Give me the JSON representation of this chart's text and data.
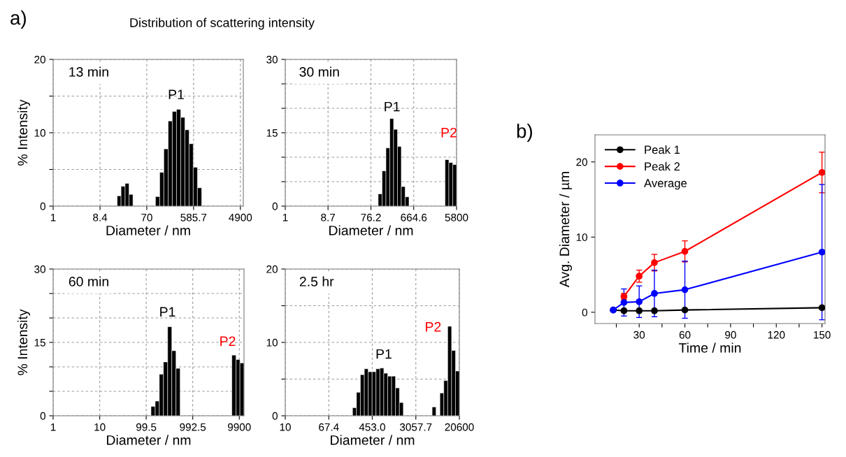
{
  "chart_data": [
    {
      "type": "histogram",
      "title": "13 min",
      "xlabel": "Diameter / nm",
      "ylabel": "% Intensity",
      "log": "x",
      "grid": true,
      "color": "#000000",
      "bins": [
        18.3,
        21.8,
        26.2,
        31.3,
        37.4,
        104,
        126,
        152,
        185,
        223,
        270,
        327,
        395,
        478,
        577,
        698,
        845
      ],
      "values": [
        1.4,
        2.7,
        3.1,
        1.6,
        0,
        1.3,
        4.6,
        7.8,
        11.6,
        12.9,
        13.2,
        12.1,
        10.4,
        8.5,
        5.3,
        2.5
      ],
      "xlim": [
        1,
        5600
      ],
      "xticks": [
        1,
        8.4,
        70,
        585.7,
        4900
      ],
      "ylim": [
        0,
        20
      ],
      "yticks": [
        0,
        {
          "value": 5,
          "label": null
        },
        10,
        {
          "value": 15,
          "label": null
        },
        20
      ],
      "annotations": [
        "a)",
        "Distribution of scattering intensity",
        "P1"
      ]
    },
    {
      "type": "histogram",
      "title": "30 min",
      "xlabel": "Diameter / nm",
      "log": "x",
      "grid": true,
      "color": "#000000",
      "bins": [
        110,
        134,
        163,
        198,
        240,
        292,
        354,
        430,
        523,
        3240,
        3930,
        4780,
        5800
      ],
      "values": [
        2.5,
        7.2,
        11.9,
        17.9,
        15.7,
        12.2,
        4.0,
        1.9,
        0,
        9.5,
        8.9,
        8.5
      ],
      "xlim": [
        1,
        5800
      ],
      "xticks": [
        1,
        8.7,
        76.2,
        664.6,
        5800
      ],
      "ylim": [
        0,
        30
      ],
      "yticks": [
        0,
        {
          "value": 5,
          "label": null
        },
        {
          "value": 10,
          "label": null
        },
        15,
        {
          "value": 20,
          "label": null
        },
        {
          "value": 25,
          "label": null
        },
        30
      ],
      "annotations": [
        "P1",
        "P2"
      ]
    },
    {
      "type": "histogram",
      "title": "60 min",
      "xlabel": "Diameter / nm",
      "ylabel": "% Intensity",
      "log": "x",
      "grid": true,
      "color": "#000000",
      "bins": [
        126,
        155,
        190,
        233,
        287,
        352,
        433,
        532,
        6850,
        8420,
        10230,
        12440
      ],
      "values": [
        1.9,
        3.0,
        8.5,
        11.0,
        18.2,
        13.3,
        9.7,
        0,
        12.4,
        11.5,
        10.8
      ],
      "xlim": [
        1,
        12500
      ],
      "xticks": [
        1,
        10,
        99.5,
        992.5,
        9900
      ],
      "ylim": [
        0,
        30
      ],
      "yticks": [
        0,
        {
          "value": 5,
          "label": null
        },
        {
          "value": 10,
          "label": null
        },
        15,
        {
          "value": 20,
          "label": null
        },
        {
          "value": 25,
          "label": null
        },
        30
      ],
      "annotations": [
        "P1",
        "P2"
      ]
    },
    {
      "type": "histogram",
      "title": "2.5 hr",
      "xlabel": "Diameter / nm",
      "log": "x",
      "grid": true,
      "color": "#000000",
      "bins": [
        191,
        227,
        269,
        320,
        379,
        450,
        533,
        632,
        751,
        891,
        1057,
        1254,
        1488,
        1766,
        6250,
        7410,
        8790,
        10420,
        12360,
        14660,
        17380,
        20600
      ],
      "values": [
        1.1,
        3.2,
        5.6,
        6.4,
        6.0,
        6.0,
        6.4,
        6.5,
        5.8,
        5.4,
        5.4,
        3.8,
        1.8,
        0,
        1.2,
        0,
        3.1,
        4.8,
        12.2,
        8.9,
        6.1
      ],
      "xlim": [
        10,
        20600
      ],
      "xticks": [
        10,
        67.4,
        {
          "value": 453.0,
          "label": "453.0"
        },
        3057.7,
        20600
      ],
      "ylim": [
        0,
        20
      ],
      "yticks": [
        0,
        {
          "value": 5,
          "label": null
        },
        10,
        {
          "value": 15,
          "label": null
        },
        20
      ],
      "annotations": [
        "P1",
        "P2"
      ]
    },
    {
      "type": "line",
      "xlabel": "Time / min",
      "ylabel": "Avg. Diameter / µm",
      "legend": "top left",
      "marker": "circle",
      "grid": false,
      "x": [
        13,
        20,
        30,
        40,
        60,
        150
      ],
      "series": [
        {
          "name": "Peak 1",
          "color": "#000000",
          "values": [
            0.3,
            0.2,
            0.2,
            0.2,
            0.3,
            0.6
          ]
        },
        {
          "name": "Peak 2",
          "color": "#ff0000",
          "values": [
            null,
            2.1,
            4.8,
            6.6,
            8.1,
            18.6
          ],
          "errors": [
            null,
            0.4,
            0.8,
            1.1,
            1.4,
            2.7
          ]
        },
        {
          "name": "Average",
          "color": "#0000ff",
          "values": [
            0.3,
            1.3,
            1.4,
            2.5,
            3.0,
            8.0
          ],
          "errors": [
            null,
            1.8,
            2.1,
            3.1,
            3.8,
            9.0
          ]
        }
      ],
      "xlim": [
        1,
        152
      ],
      "xticks": [
        {
          "value": 15,
          "label": null
        },
        30,
        {
          "value": 45,
          "label": null
        },
        60,
        {
          "value": 75,
          "label": null
        },
        90,
        {
          "value": 105,
          "label": null
        },
        120,
        {
          "value": 135,
          "label": null
        },
        150
      ],
      "ylim": [
        -1.5,
        23.6
      ],
      "yticks": [
        0,
        10,
        20
      ],
      "annotations": [
        "b)"
      ]
    }
  ]
}
